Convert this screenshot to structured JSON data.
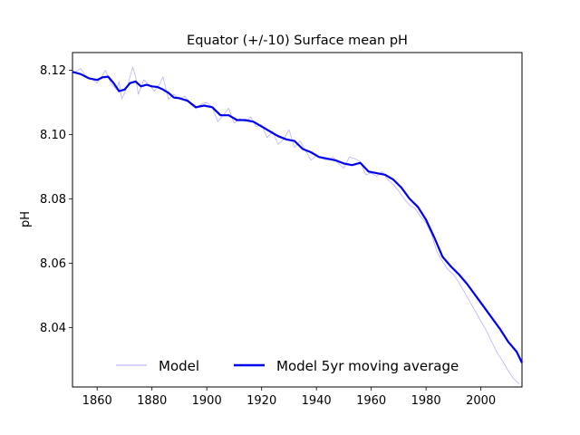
{
  "chart_data": {
    "type": "line",
    "title": "Equator (+/-10) Surface mean pH",
    "xlabel": "",
    "ylabel": "pH",
    "xlim": [
      1851,
      2015
    ],
    "ylim": [
      8.0215,
      8.1255
    ],
    "xticks": [
      1860,
      1880,
      1900,
      1920,
      1940,
      1960,
      1980,
      2000
    ],
    "yticks": [
      8.04,
      8.06,
      8.08,
      8.1,
      8.12
    ],
    "ytick_labels": [
      "8.04",
      "8.06",
      "8.08",
      "8.10",
      "8.12"
    ],
    "grid": false,
    "legend": {
      "placement": "lower center",
      "frame": false
    },
    "series": [
      {
        "name": "Model",
        "color": "#aaaaff",
        "x": [
          1852,
          1854,
          1856,
          1858,
          1860,
          1862,
          1863,
          1865,
          1867,
          1868,
          1869,
          1871,
          1873,
          1874,
          1875,
          1877,
          1879,
          1881,
          1883,
          1884,
          1886,
          1888,
          1890,
          1892,
          1894,
          1896,
          1898,
          1900,
          1902,
          1904,
          1906,
          1908,
          1910,
          1912,
          1914,
          1916,
          1918,
          1920,
          1922,
          1924,
          1926,
          1928,
          1930,
          1932,
          1934,
          1936,
          1938,
          1940,
          1942,
          1944,
          1946,
          1948,
          1950,
          1952,
          1954,
          1956,
          1958,
          1960,
          1962,
          1964,
          1966,
          1968,
          1970,
          1972,
          1974,
          1976,
          1978,
          1980,
          1982,
          1984,
          1986,
          1988,
          1990,
          1992,
          1994,
          1996,
          1998,
          2000,
          2002,
          2004,
          2006,
          2008,
          2010,
          2012,
          2014
        ],
        "values": [
          8.1195,
          8.1205,
          8.118,
          8.1172,
          8.116,
          8.1185,
          8.12,
          8.116,
          8.114,
          8.1165,
          8.111,
          8.115,
          8.121,
          8.118,
          8.1125,
          8.117,
          8.1155,
          8.1135,
          8.116,
          8.118,
          8.111,
          8.1125,
          8.111,
          8.112,
          8.1095,
          8.108,
          8.1095,
          8.11,
          8.1085,
          8.104,
          8.106,
          8.1082,
          8.1035,
          8.105,
          8.104,
          8.1055,
          8.1025,
          8.103,
          8.099,
          8.101,
          8.097,
          8.0985,
          8.1015,
          8.096,
          8.098,
          8.095,
          8.092,
          8.0935,
          8.0925,
          8.092,
          8.093,
          8.091,
          8.0895,
          8.093,
          8.0925,
          8.0915,
          8.0875,
          8.088,
          8.087,
          8.0885,
          8.086,
          8.0845,
          8.0825,
          8.08,
          8.078,
          8.077,
          8.0745,
          8.0725,
          8.069,
          8.0635,
          8.0605,
          8.058,
          8.0565,
          8.054,
          8.051,
          8.048,
          8.045,
          8.042,
          8.039,
          8.0355,
          8.032,
          8.0295,
          8.0265,
          8.024,
          8.0225
        ]
      },
      {
        "name": "Model 5yr moving average",
        "color": "#0000ee",
        "x": [
          1851,
          1854,
          1857,
          1860,
          1862,
          1864,
          1866,
          1868,
          1870,
          1872,
          1874,
          1876,
          1878,
          1880,
          1882,
          1884,
          1886,
          1888,
          1890,
          1893,
          1896,
          1899,
          1902,
          1905,
          1908,
          1911,
          1914,
          1917,
          1920,
          1923,
          1926,
          1929,
          1932,
          1935,
          1938,
          1941,
          1944,
          1947,
          1950,
          1953,
          1956,
          1959,
          1962,
          1965,
          1968,
          1971,
          1974,
          1977,
          1980,
          1983,
          1986,
          1989,
          1992,
          1995,
          1998,
          2001,
          2004,
          2007,
          2010,
          2013,
          2015
        ],
        "values": [
          8.1195,
          8.1188,
          8.1175,
          8.117,
          8.1178,
          8.118,
          8.116,
          8.1135,
          8.114,
          8.116,
          8.1165,
          8.115,
          8.1155,
          8.115,
          8.1148,
          8.114,
          8.113,
          8.1115,
          8.1113,
          8.1105,
          8.1085,
          8.109,
          8.1085,
          8.106,
          8.106,
          8.1045,
          8.1045,
          8.104,
          8.1025,
          8.101,
          8.0995,
          8.0985,
          8.098,
          8.0955,
          8.0945,
          8.093,
          8.0925,
          8.092,
          8.091,
          8.0905,
          8.0912,
          8.0885,
          8.088,
          8.0875,
          8.086,
          8.0835,
          8.08,
          8.0775,
          8.0735,
          8.068,
          8.062,
          8.059,
          8.0565,
          8.0535,
          8.05,
          8.0465,
          8.043,
          8.0395,
          8.0355,
          8.0325,
          8.029
        ]
      }
    ]
  }
}
